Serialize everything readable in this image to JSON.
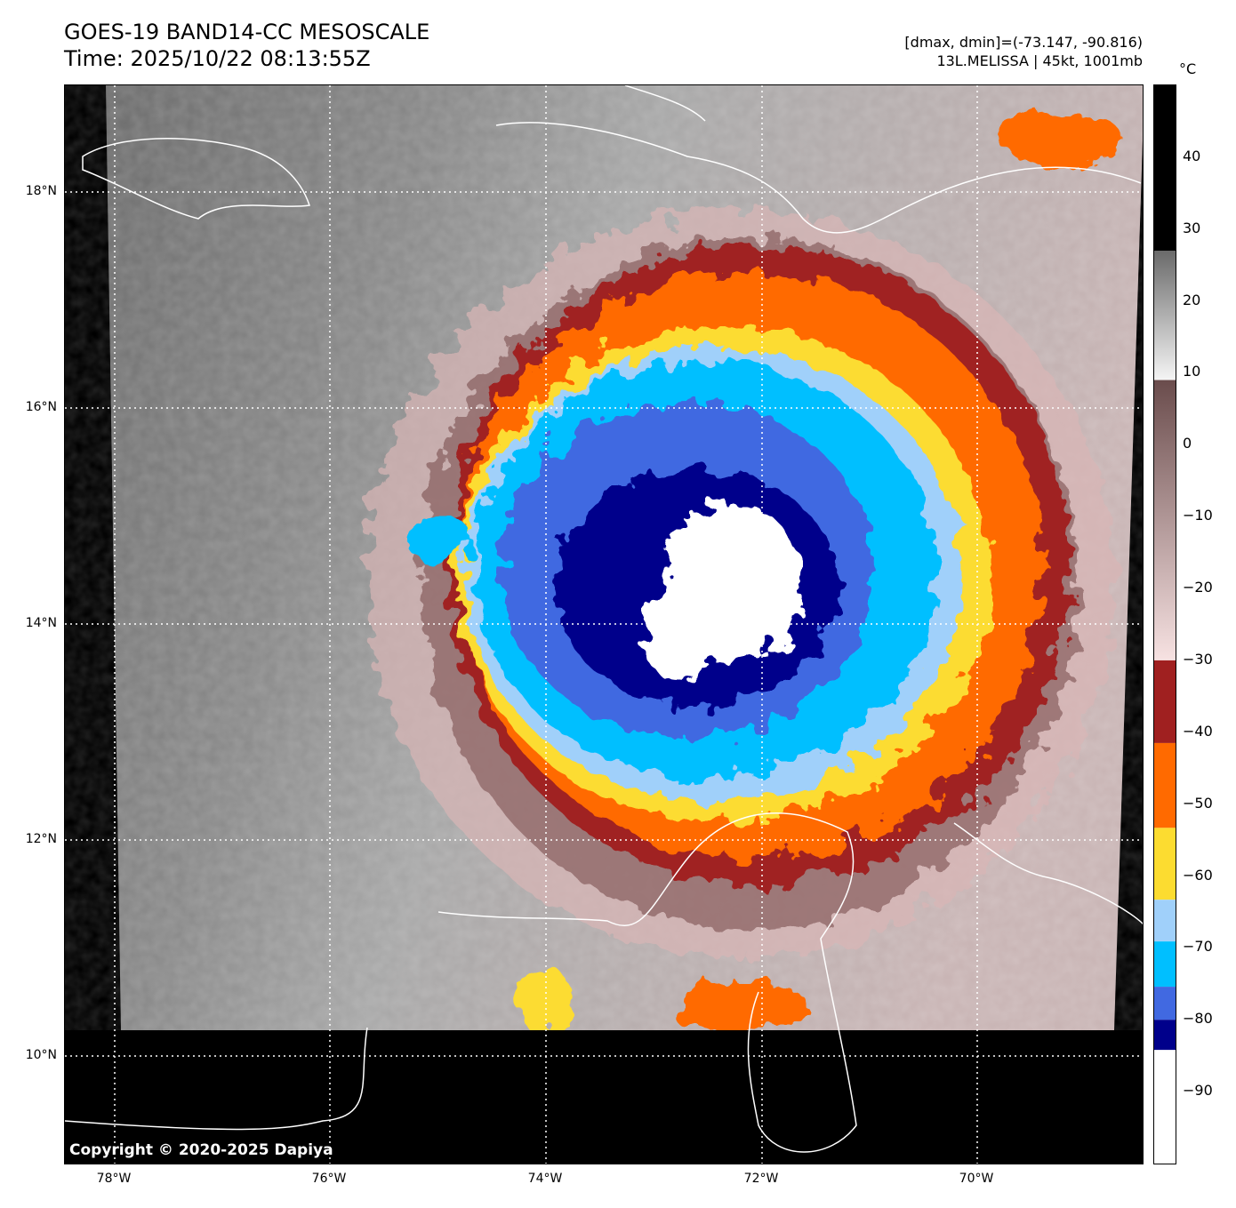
{
  "header": {
    "title": "GOES-19 BAND14-CC MESOSCALE",
    "time": "Time: 2025/10/22 08:13:55Z",
    "dminmax": "[dmax, dmin]=(-73.147, -90.816)",
    "storm": "13L.MELISSA | 45kt, 1001mb"
  },
  "colorbar": {
    "unit": "°C",
    "range": [
      -100,
      50
    ],
    "ticks": [
      "40",
      "30",
      "20",
      "10",
      "0",
      "−10",
      "−20",
      "−30",
      "−40",
      "−50",
      "−60",
      "−70",
      "−80",
      "−90"
    ],
    "tick_values": [
      40,
      30,
      20,
      10,
      0,
      -10,
      -20,
      -30,
      -40,
      -50,
      -60,
      -70,
      -80,
      -90
    ],
    "segments": [
      {
        "from": 27,
        "to": 50,
        "color": "#000000"
      },
      {
        "from": 9,
        "to": 27,
        "color": "#6a6a6a",
        "gradient_to": "#f5f5f5"
      },
      {
        "from": -30,
        "to": 9,
        "color": "#6a4c4c",
        "gradient_to": "#f7e2e2"
      },
      {
        "from": -41.5,
        "to": -30,
        "color": "#a02020"
      },
      {
        "from": -53.3,
        "to": -41.5,
        "color": "#ff6a00"
      },
      {
        "from": -63.3,
        "to": -53.3,
        "color": "#fcdc30"
      },
      {
        "from": -69.1,
        "to": -63.3,
        "color": "#a0d0fa"
      },
      {
        "from": -75.4,
        "to": -69.1,
        "color": "#00bfff"
      },
      {
        "from": -80,
        "to": -75.4,
        "color": "#4169e1"
      },
      {
        "from": -84.2,
        "to": -80,
        "color": "#00008b"
      },
      {
        "from": -100,
        "to": -84.2,
        "color": "#ffffff"
      }
    ]
  },
  "axes": {
    "lat_labels": [
      "18°N",
      "16°N",
      "14°N",
      "12°N",
      "10°N"
    ],
    "lon_labels": [
      "78°W",
      "76°W",
      "74°W",
      "72°W",
      "70°W"
    ]
  },
  "copyright": "Copyright © 2020-2025 Dapiya"
}
